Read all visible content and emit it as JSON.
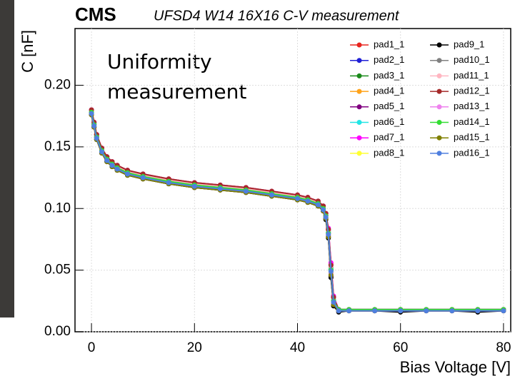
{
  "chart_data": {
    "type": "line",
    "title": "CMS",
    "subtitle": "UFSD4 W14 16X16 C-V measurement",
    "annotation": [
      "Uniformity",
      "measurement"
    ],
    "x_label": "Bias Voltage [V]",
    "y_label": "C [nF]",
    "xlim": [
      -3.2,
      81.4
    ],
    "ylim": [
      0,
      0.246
    ],
    "xticks": [
      0,
      20,
      40,
      60,
      80
    ],
    "yticks": [
      {
        "value": 0,
        "label": "0.00"
      },
      {
        "value": 0.05,
        "label": "0.05"
      },
      {
        "value": 0.1,
        "label": "0.10"
      },
      {
        "value": 0.15,
        "label": "0.15"
      },
      {
        "value": 0.2,
        "label": "0.20"
      }
    ],
    "grid": true,
    "legend": "upper right",
    "x": [
      0,
      0.5,
      1,
      2,
      3,
      4,
      5,
      7,
      10,
      15,
      20,
      25,
      30,
      35,
      40,
      42,
      44,
      45,
      45.5,
      46,
      46.5,
      47,
      48,
      50,
      55,
      60,
      65,
      70,
      75,
      80
    ],
    "series": [
      {
        "name": "pad1_1",
        "color": "#e8251f",
        "values": [
          0.18,
          0.17,
          0.16,
          0.149,
          0.142,
          0.138,
          0.135,
          0.131,
          0.128,
          0.124,
          0.121,
          0.119,
          0.117,
          0.114,
          0.111,
          0.109,
          0.106,
          0.102,
          0.096,
          0.083,
          0.055,
          0.028,
          0.018,
          0.018,
          0.018,
          0.018,
          0.018,
          0.018,
          0.018,
          0.018
        ]
      },
      {
        "name": "pad2_1",
        "color": "#1f1fd6",
        "values": [
          0.178,
          0.168,
          0.158,
          0.147,
          0.14,
          0.136,
          0.133,
          0.129,
          0.126,
          0.122,
          0.119,
          0.117,
          0.115,
          0.112,
          0.109,
          0.107,
          0.104,
          0.1,
          0.094,
          0.08,
          0.05,
          0.025,
          0.018,
          0.018,
          0.018,
          0.018,
          0.018,
          0.018,
          0.018,
          0.018
        ]
      },
      {
        "name": "pad3_1",
        "color": "#1a8a1a",
        "values": [
          0.179,
          0.169,
          0.159,
          0.148,
          0.141,
          0.137,
          0.134,
          0.13,
          0.127,
          0.123,
          0.12,
          0.118,
          0.116,
          0.113,
          0.11,
          0.108,
          0.105,
          0.101,
          0.095,
          0.082,
          0.052,
          0.026,
          0.018,
          0.017,
          0.017,
          0.018,
          0.017,
          0.017,
          0.018,
          0.017
        ]
      },
      {
        "name": "pad4_1",
        "color": "#ffa31a",
        "values": [
          0.177,
          0.167,
          0.157,
          0.146,
          0.139,
          0.135,
          0.132,
          0.128,
          0.125,
          0.121,
          0.118,
          0.116,
          0.114,
          0.111,
          0.108,
          0.106,
          0.103,
          0.099,
          0.093,
          0.078,
          0.048,
          0.024,
          0.017,
          0.017,
          0.017,
          0.017,
          0.017,
          0.017,
          0.017,
          0.017
        ]
      },
      {
        "name": "pad5_1",
        "color": "#800080",
        "values": [
          0.176,
          0.166,
          0.156,
          0.145,
          0.138,
          0.134,
          0.131,
          0.127,
          0.124,
          0.12,
          0.117,
          0.115,
          0.113,
          0.11,
          0.107,
          0.105,
          0.102,
          0.098,
          0.092,
          0.077,
          0.045,
          0.022,
          0.017,
          0.017,
          0.017,
          0.017,
          0.017,
          0.017,
          0.017,
          0.017
        ]
      },
      {
        "name": "pad6_1",
        "color": "#22e5e5",
        "values": [
          0.179,
          0.169,
          0.159,
          0.148,
          0.141,
          0.137,
          0.134,
          0.13,
          0.127,
          0.123,
          0.12,
          0.118,
          0.116,
          0.113,
          0.11,
          0.108,
          0.105,
          0.101,
          0.095,
          0.081,
          0.051,
          0.026,
          0.018,
          0.018,
          0.018,
          0.018,
          0.018,
          0.018,
          0.018,
          0.018
        ]
      },
      {
        "name": "pad7_1",
        "color": "#ff00ff",
        "values": [
          0.18,
          0.17,
          0.16,
          0.149,
          0.142,
          0.138,
          0.135,
          0.131,
          0.128,
          0.124,
          0.121,
          0.119,
          0.117,
          0.114,
          0.111,
          0.109,
          0.106,
          0.102,
          0.096,
          0.084,
          0.056,
          0.029,
          0.018,
          0.018,
          0.018,
          0.018,
          0.018,
          0.018,
          0.018,
          0.018
        ]
      },
      {
        "name": "pad8_1",
        "color": "#ffff33",
        "values": [
          0.177,
          0.167,
          0.157,
          0.146,
          0.139,
          0.135,
          0.132,
          0.128,
          0.125,
          0.121,
          0.118,
          0.116,
          0.114,
          0.111,
          0.108,
          0.106,
          0.103,
          0.099,
          0.093,
          0.079,
          0.049,
          0.024,
          0.017,
          0.017,
          0.017,
          0.017,
          0.017,
          0.017,
          0.017,
          0.017
        ]
      },
      {
        "name": "pad9_1",
        "color": "#000000",
        "values": [
          0.176,
          0.166,
          0.156,
          0.145,
          0.138,
          0.134,
          0.131,
          0.127,
          0.124,
          0.12,
          0.117,
          0.115,
          0.113,
          0.11,
          0.107,
          0.105,
          0.102,
          0.098,
          0.091,
          0.076,
          0.044,
          0.021,
          0.016,
          0.017,
          0.017,
          0.016,
          0.017,
          0.017,
          0.016,
          0.017
        ]
      },
      {
        "name": "pad10_1",
        "color": "#808080",
        "values": [
          0.178,
          0.168,
          0.158,
          0.147,
          0.14,
          0.136,
          0.133,
          0.129,
          0.126,
          0.122,
          0.119,
          0.117,
          0.115,
          0.112,
          0.109,
          0.107,
          0.104,
          0.1,
          0.094,
          0.08,
          0.05,
          0.025,
          0.018,
          0.018,
          0.018,
          0.018,
          0.018,
          0.018,
          0.018,
          0.018
        ]
      },
      {
        "name": "pad11_1",
        "color": "#ffb6c1",
        "values": [
          0.179,
          0.169,
          0.159,
          0.148,
          0.141,
          0.137,
          0.134,
          0.13,
          0.127,
          0.123,
          0.12,
          0.118,
          0.116,
          0.113,
          0.11,
          0.108,
          0.105,
          0.101,
          0.095,
          0.082,
          0.053,
          0.027,
          0.018,
          0.018,
          0.018,
          0.018,
          0.018,
          0.018,
          0.018,
          0.018
        ]
      },
      {
        "name": "pad12_1",
        "color": "#a52a2a",
        "values": [
          0.18,
          0.17,
          0.16,
          0.149,
          0.142,
          0.138,
          0.135,
          0.131,
          0.128,
          0.124,
          0.121,
          0.119,
          0.117,
          0.114,
          0.111,
          0.109,
          0.106,
          0.102,
          0.096,
          0.083,
          0.054,
          0.028,
          0.018,
          0.018,
          0.018,
          0.018,
          0.018,
          0.018,
          0.018,
          0.018
        ]
      },
      {
        "name": "pad13_1",
        "color": "#ee82ee",
        "values": [
          0.177,
          0.167,
          0.157,
          0.146,
          0.139,
          0.135,
          0.132,
          0.128,
          0.125,
          0.121,
          0.118,
          0.116,
          0.114,
          0.111,
          0.108,
          0.106,
          0.103,
          0.099,
          0.093,
          0.078,
          0.047,
          0.023,
          0.017,
          0.017,
          0.017,
          0.017,
          0.017,
          0.017,
          0.017,
          0.017
        ]
      },
      {
        "name": "pad14_1",
        "color": "#33dd33",
        "values": [
          0.178,
          0.168,
          0.158,
          0.147,
          0.14,
          0.136,
          0.133,
          0.129,
          0.126,
          0.122,
          0.119,
          0.117,
          0.115,
          0.112,
          0.109,
          0.107,
          0.104,
          0.1,
          0.094,
          0.08,
          0.05,
          0.025,
          0.018,
          0.018,
          0.018,
          0.018,
          0.018,
          0.018,
          0.018,
          0.018
        ]
      },
      {
        "name": "pad15_1",
        "color": "#808000",
        "values": [
          0.176,
          0.166,
          0.156,
          0.145,
          0.138,
          0.134,
          0.131,
          0.127,
          0.124,
          0.12,
          0.117,
          0.115,
          0.113,
          0.11,
          0.107,
          0.105,
          0.102,
          0.098,
          0.092,
          0.077,
          0.046,
          0.022,
          0.017,
          0.017,
          0.017,
          0.017,
          0.017,
          0.017,
          0.017,
          0.017
        ]
      },
      {
        "name": "pad16_1",
        "color": "#4f7fdf",
        "values": [
          0.177,
          0.167,
          0.157,
          0.146,
          0.139,
          0.135,
          0.132,
          0.128,
          0.125,
          0.121,
          0.118,
          0.116,
          0.114,
          0.111,
          0.108,
          0.106,
          0.103,
          0.099,
          0.093,
          0.079,
          0.049,
          0.024,
          0.017,
          0.017,
          0.017,
          0.017,
          0.017,
          0.017,
          0.017,
          0.017
        ]
      }
    ]
  }
}
